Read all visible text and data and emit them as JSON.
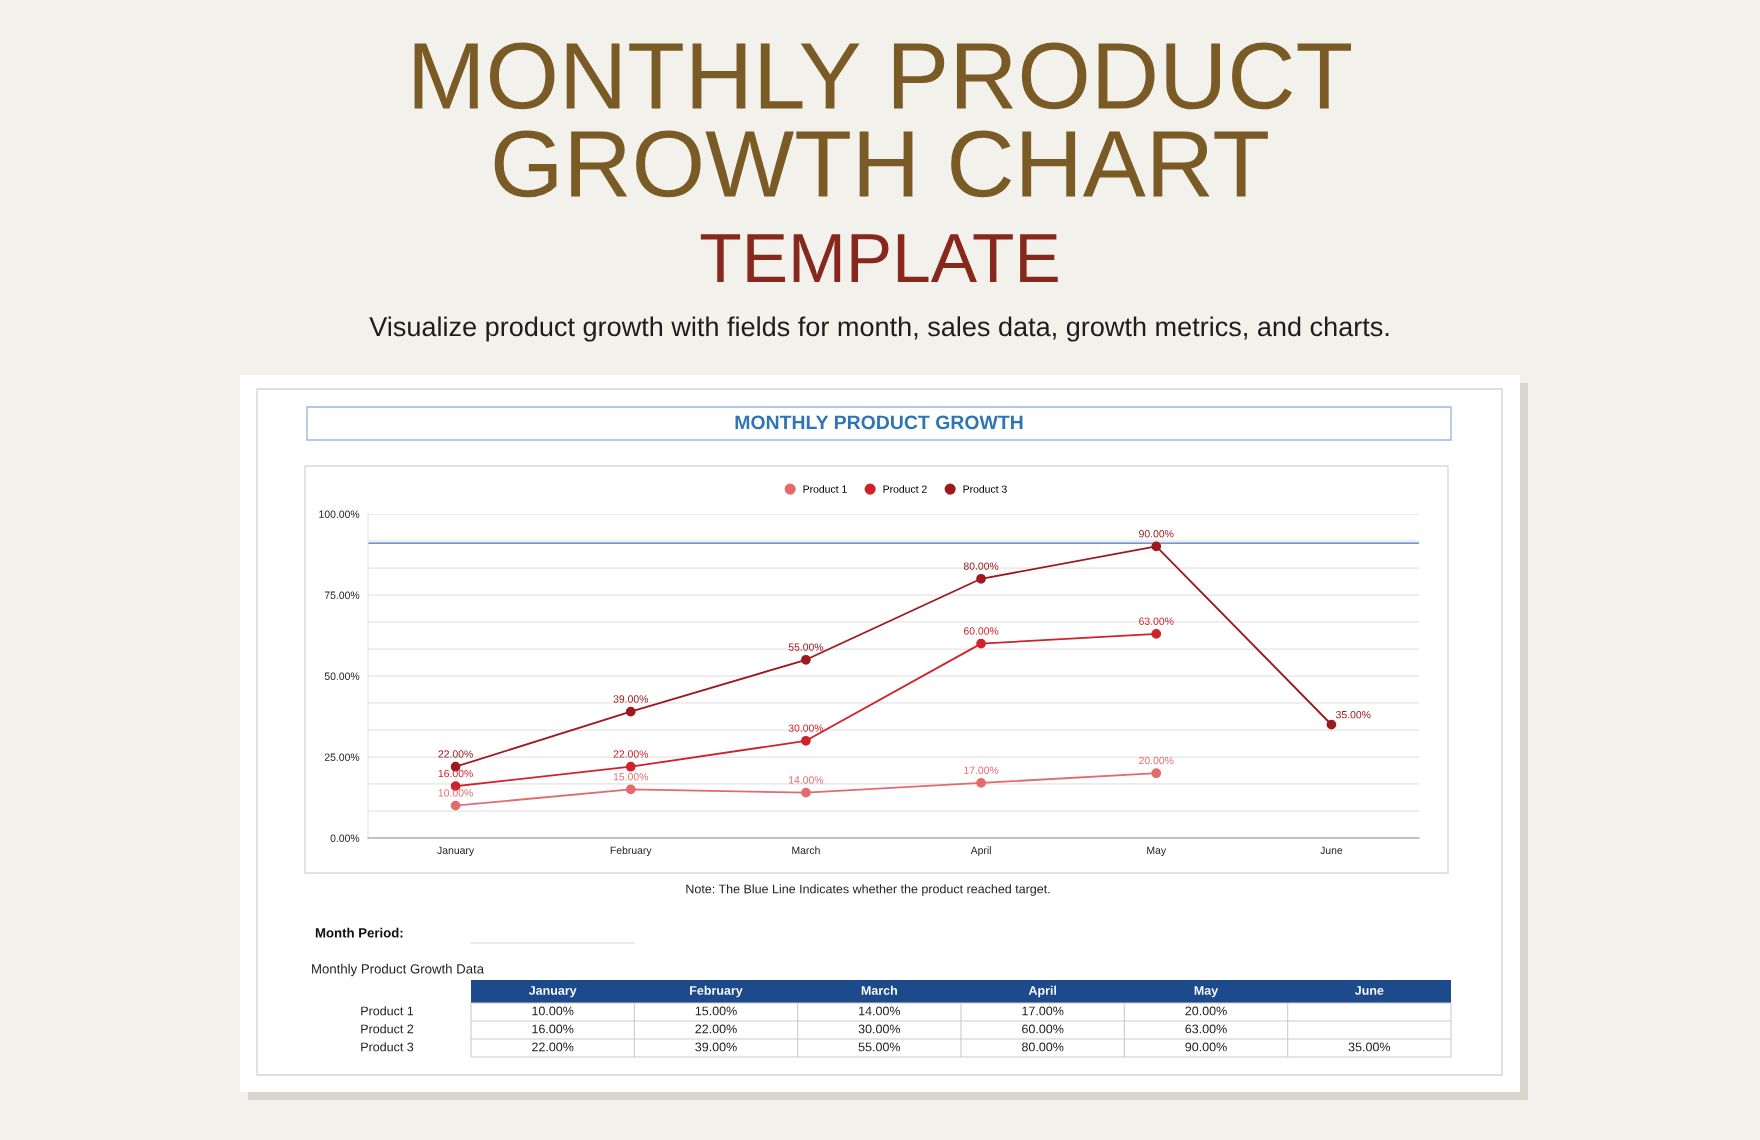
{
  "chart_data": {
    "type": "line",
    "title": "MONTHLY PRODUCT GROWTH",
    "subtitle": "Visualize product growth with fields for month, sales data, growth metrics, and charts.",
    "annotations": [
      "MONTHLY PRODUCT",
      "GROWTH CHART",
      "TEMPLATE",
      "Note: The Blue Line Indicates whether the product reached target.",
      "Month Period:",
      "Monthly Product Growth Data"
    ],
    "categories": [
      "January",
      "February",
      "March",
      "April",
      "May",
      "June"
    ],
    "series": [
      {
        "name": "Product 1",
        "color": "#e36a6d",
        "values": [
          10,
          15,
          14,
          17,
          20,
          null
        ],
        "value_labels": [
          "10.00%",
          "15.00%",
          "14.00%",
          "17.00%",
          "20.00%",
          null
        ]
      },
      {
        "name": "Product 2",
        "color": "#d0222a",
        "values": [
          16,
          22,
          30,
          60,
          63,
          null
        ],
        "value_labels": [
          "16.00%",
          "22.00%",
          "30.00%",
          "60.00%",
          "63.00%",
          null
        ]
      },
      {
        "name": "Product 3",
        "color": "#9c1a1f",
        "values": [
          22,
          39,
          55,
          80,
          90,
          35
        ],
        "value_labels": [
          "22.00%",
          "39.00%",
          "55.00%",
          "80.00%",
          "90.00%",
          "35.00%"
        ]
      }
    ],
    "ylim": [
      0,
      100
    ],
    "yticks": [
      {
        "value": 0,
        "label": "0.00%"
      },
      {
        "value": 8.333,
        "label": null
      },
      {
        "value": 16.667,
        "label": null
      },
      {
        "value": 25,
        "label": "25.00%"
      },
      {
        "value": 33.333,
        "label": null
      },
      {
        "value": 41.667,
        "label": null
      },
      {
        "value": 50,
        "label": "50.00%"
      },
      {
        "value": 58.333,
        "label": null
      },
      {
        "value": 66.667,
        "label": null
      },
      {
        "value": 75,
        "label": "75.00%"
      },
      {
        "value": 83.333,
        "label": null
      },
      {
        "value": 91.667,
        "label": null
      },
      {
        "value": 100,
        "label": "100.00%"
      }
    ],
    "ref_lines": [
      {
        "axis": "y",
        "value": 91,
        "color": "#4472c4"
      }
    ],
    "grid": "y",
    "legend": "top",
    "marker": "circle",
    "line_style": "solid"
  }
}
